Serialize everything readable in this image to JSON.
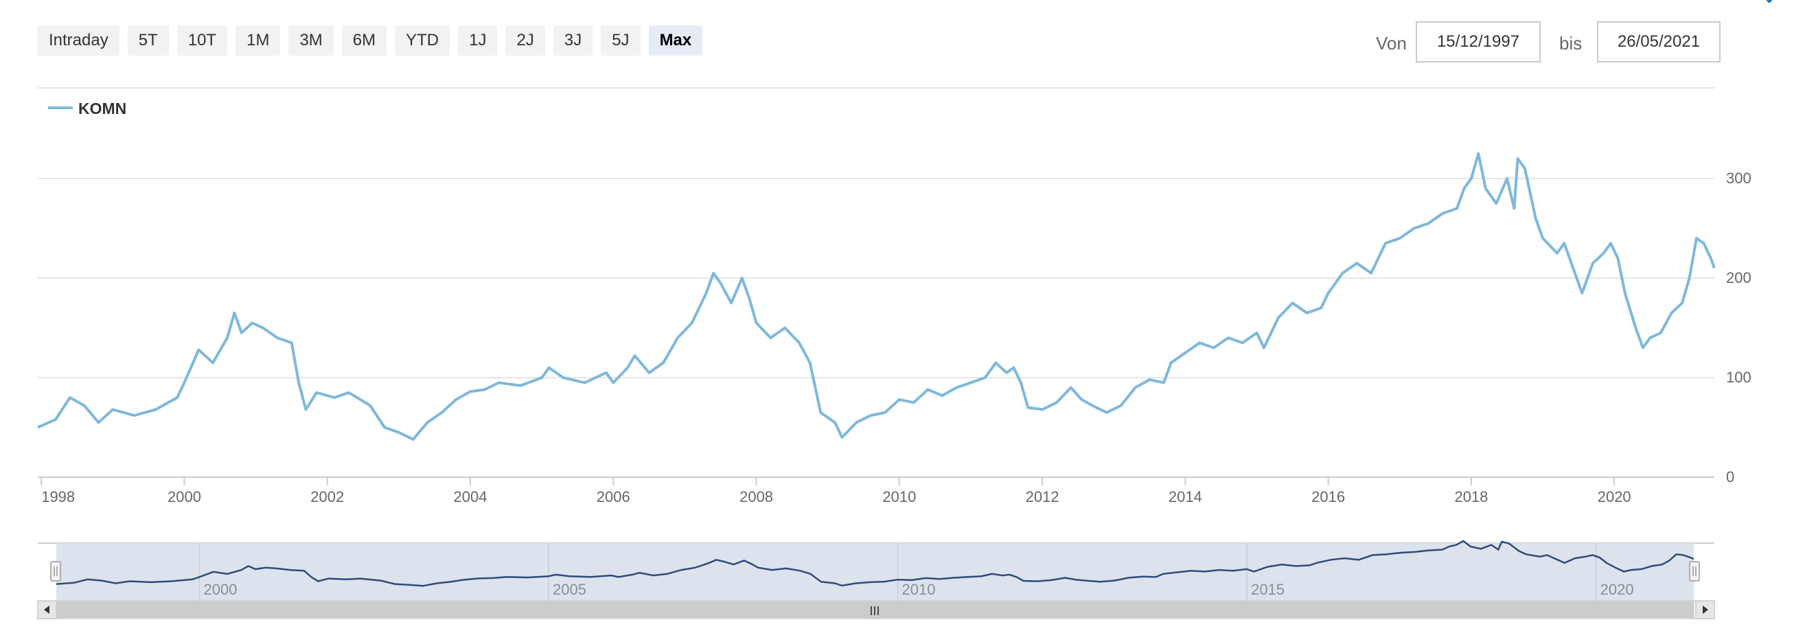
{
  "range_selector": {
    "buttons": [
      "Intraday",
      "5T",
      "10T",
      "1M",
      "3M",
      "6M",
      "YTD",
      "1J",
      "2J",
      "3J",
      "5J",
      "Max"
    ],
    "selected": "Max"
  },
  "date_range": {
    "from_label": "Von",
    "from_value": "15/12/1997",
    "to_label": "bis",
    "to_value": "26/05/2021"
  },
  "navigator": {
    "labels": [
      "2000",
      "2005",
      "2010",
      "2015",
      "2020"
    ],
    "scroll_handle": "III",
    "mask_color": "#dce3ec",
    "line_color": "#2f4b7c"
  },
  "chart_data": {
    "type": "line",
    "legend": "top-left",
    "grid": true,
    "series": [
      {
        "name": "KOMN",
        "color": "#7fb8da",
        "points": [
          [
            1997.95,
            50
          ],
          [
            1998.2,
            58
          ],
          [
            1998.4,
            80
          ],
          [
            1998.6,
            72
          ],
          [
            1998.8,
            55
          ],
          [
            1999.0,
            68
          ],
          [
            1999.3,
            62
          ],
          [
            1999.6,
            68
          ],
          [
            1999.9,
            80
          ],
          [
            2000.0,
            95
          ],
          [
            2000.2,
            128
          ],
          [
            2000.4,
            115
          ],
          [
            2000.6,
            140
          ],
          [
            2000.7,
            165
          ],
          [
            2000.8,
            145
          ],
          [
            2000.95,
            155
          ],
          [
            2001.1,
            150
          ],
          [
            2001.3,
            140
          ],
          [
            2001.5,
            135
          ],
          [
            2001.6,
            95
          ],
          [
            2001.7,
            68
          ],
          [
            2001.85,
            85
          ],
          [
            2002.1,
            80
          ],
          [
            2002.3,
            85
          ],
          [
            2002.6,
            72
          ],
          [
            2002.8,
            50
          ],
          [
            2003.0,
            45
          ],
          [
            2003.2,
            38
          ],
          [
            2003.4,
            55
          ],
          [
            2003.6,
            65
          ],
          [
            2003.8,
            78
          ],
          [
            2004.0,
            86
          ],
          [
            2004.2,
            88
          ],
          [
            2004.4,
            95
          ],
          [
            2004.7,
            92
          ],
          [
            2005.0,
            100
          ],
          [
            2005.1,
            110
          ],
          [
            2005.3,
            100
          ],
          [
            2005.6,
            95
          ],
          [
            2005.9,
            105
          ],
          [
            2006.0,
            95
          ],
          [
            2006.2,
            110
          ],
          [
            2006.3,
            122
          ],
          [
            2006.5,
            105
          ],
          [
            2006.7,
            115
          ],
          [
            2006.9,
            140
          ],
          [
            2007.1,
            155
          ],
          [
            2007.3,
            185
          ],
          [
            2007.4,
            205
          ],
          [
            2007.5,
            195
          ],
          [
            2007.65,
            175
          ],
          [
            2007.8,
            200
          ],
          [
            2007.9,
            180
          ],
          [
            2008.0,
            155
          ],
          [
            2008.2,
            140
          ],
          [
            2008.4,
            150
          ],
          [
            2008.6,
            135
          ],
          [
            2008.75,
            115
          ],
          [
            2008.9,
            65
          ],
          [
            2009.1,
            55
          ],
          [
            2009.2,
            40
          ],
          [
            2009.4,
            55
          ],
          [
            2009.6,
            62
          ],
          [
            2009.8,
            65
          ],
          [
            2010.0,
            78
          ],
          [
            2010.2,
            75
          ],
          [
            2010.4,
            88
          ],
          [
            2010.6,
            82
          ],
          [
            2010.8,
            90
          ],
          [
            2011.0,
            95
          ],
          [
            2011.2,
            100
          ],
          [
            2011.35,
            115
          ],
          [
            2011.5,
            105
          ],
          [
            2011.6,
            110
          ],
          [
            2011.7,
            95
          ],
          [
            2011.8,
            70
          ],
          [
            2012.0,
            68
          ],
          [
            2012.2,
            75
          ],
          [
            2012.4,
            90
          ],
          [
            2012.55,
            78
          ],
          [
            2012.7,
            72
          ],
          [
            2012.9,
            65
          ],
          [
            2013.1,
            72
          ],
          [
            2013.3,
            90
          ],
          [
            2013.5,
            98
          ],
          [
            2013.7,
            95
          ],
          [
            2013.8,
            115
          ],
          [
            2014.0,
            125
          ],
          [
            2014.2,
            135
          ],
          [
            2014.4,
            130
          ],
          [
            2014.6,
            140
          ],
          [
            2014.8,
            135
          ],
          [
            2015.0,
            145
          ],
          [
            2015.1,
            130
          ],
          [
            2015.3,
            160
          ],
          [
            2015.5,
            175
          ],
          [
            2015.7,
            165
          ],
          [
            2015.9,
            170
          ],
          [
            2016.0,
            185
          ],
          [
            2016.2,
            205
          ],
          [
            2016.4,
            215
          ],
          [
            2016.6,
            205
          ],
          [
            2016.8,
            235
          ],
          [
            2017.0,
            240
          ],
          [
            2017.2,
            250
          ],
          [
            2017.4,
            255
          ],
          [
            2017.6,
            265
          ],
          [
            2017.8,
            270
          ],
          [
            2017.9,
            290
          ],
          [
            2018.0,
            300
          ],
          [
            2018.1,
            325
          ],
          [
            2018.2,
            290
          ],
          [
            2018.35,
            275
          ],
          [
            2018.5,
            300
          ],
          [
            2018.6,
            270
          ],
          [
            2018.65,
            320
          ],
          [
            2018.75,
            310
          ],
          [
            2018.9,
            260
          ],
          [
            2019.0,
            240
          ],
          [
            2019.2,
            225
          ],
          [
            2019.3,
            235
          ],
          [
            2019.45,
            205
          ],
          [
            2019.55,
            185
          ],
          [
            2019.7,
            215
          ],
          [
            2019.85,
            225
          ],
          [
            2019.95,
            235
          ],
          [
            2020.05,
            220
          ],
          [
            2020.15,
            185
          ],
          [
            2020.3,
            150
          ],
          [
            2020.4,
            130
          ],
          [
            2020.5,
            140
          ],
          [
            2020.65,
            145
          ],
          [
            2020.8,
            165
          ],
          [
            2020.95,
            175
          ],
          [
            2021.05,
            200
          ],
          [
            2021.15,
            240
          ],
          [
            2021.25,
            235
          ],
          [
            2021.35,
            220
          ],
          [
            2021.4,
            210
          ]
        ]
      }
    ],
    "x_ticks": [
      "1998",
      "2000",
      "2002",
      "2004",
      "2006",
      "2008",
      "2010",
      "2012",
      "2014",
      "2016",
      "2018",
      "2020"
    ],
    "y_ticks": [
      "0",
      "100",
      "200",
      "300"
    ],
    "xlim": [
      1997.95,
      2021.4
    ],
    "ylim": [
      0,
      300
    ]
  }
}
